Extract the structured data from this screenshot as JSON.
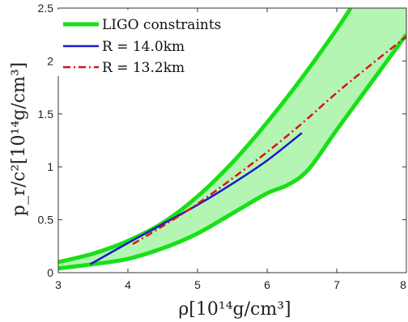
{
  "chart_data": {
    "type": "area",
    "title": "",
    "xlabel": "ρ[10¹⁴g/cm³]",
    "ylabel": "p_r/c²[10¹⁴g/cm³]",
    "xlim": [
      3,
      8
    ],
    "ylim": [
      0,
      2.5
    ],
    "xticks": [
      "3",
      "4",
      "5",
      "6",
      "7",
      "8"
    ],
    "yticks": [
      "0",
      "0.5",
      "1",
      "1.5",
      "2",
      "2.5"
    ],
    "grid": false,
    "legend_position": "top-left",
    "band": {
      "name": "LIGO constraints",
      "color": "#18e018",
      "fill": "#b4f5b4",
      "upper": [
        [
          3.0,
          0.1
        ],
        [
          3.5,
          0.18
        ],
        [
          4.0,
          0.3
        ],
        [
          4.5,
          0.47
        ],
        [
          5.0,
          0.72
        ],
        [
          5.5,
          1.04
        ],
        [
          6.0,
          1.42
        ],
        [
          6.5,
          1.84
        ],
        [
          7.0,
          2.3
        ],
        [
          7.2,
          2.5
        ]
      ],
      "lower": [
        [
          3.0,
          0.04
        ],
        [
          3.5,
          0.08
        ],
        [
          4.0,
          0.13
        ],
        [
          4.5,
          0.23
        ],
        [
          5.0,
          0.37
        ],
        [
          5.5,
          0.56
        ],
        [
          6.0,
          0.75
        ],
        [
          6.3,
          0.83
        ],
        [
          6.6,
          0.98
        ],
        [
          7.0,
          1.35
        ],
        [
          7.5,
          1.8
        ],
        [
          8.0,
          2.25
        ]
      ]
    },
    "series": [
      {
        "name": "R = 14.0km",
        "color": "#1a1acc",
        "dash": "solid",
        "points": [
          [
            3.46,
            0.08
          ],
          [
            4.0,
            0.28
          ],
          [
            4.5,
            0.46
          ],
          [
            5.0,
            0.64
          ],
          [
            5.5,
            0.84
          ],
          [
            6.0,
            1.06
          ],
          [
            6.5,
            1.32
          ]
        ]
      },
      {
        "name": "R = 13.2km",
        "color": "#dd1111",
        "dash": "dashdot",
        "points": [
          [
            4.07,
            0.27
          ],
          [
            4.5,
            0.44
          ],
          [
            5.0,
            0.65
          ],
          [
            5.5,
            0.89
          ],
          [
            6.0,
            1.14
          ],
          [
            6.5,
            1.41
          ],
          [
            7.0,
            1.7
          ],
          [
            7.5,
            1.97
          ],
          [
            8.0,
            2.23
          ]
        ]
      }
    ]
  }
}
